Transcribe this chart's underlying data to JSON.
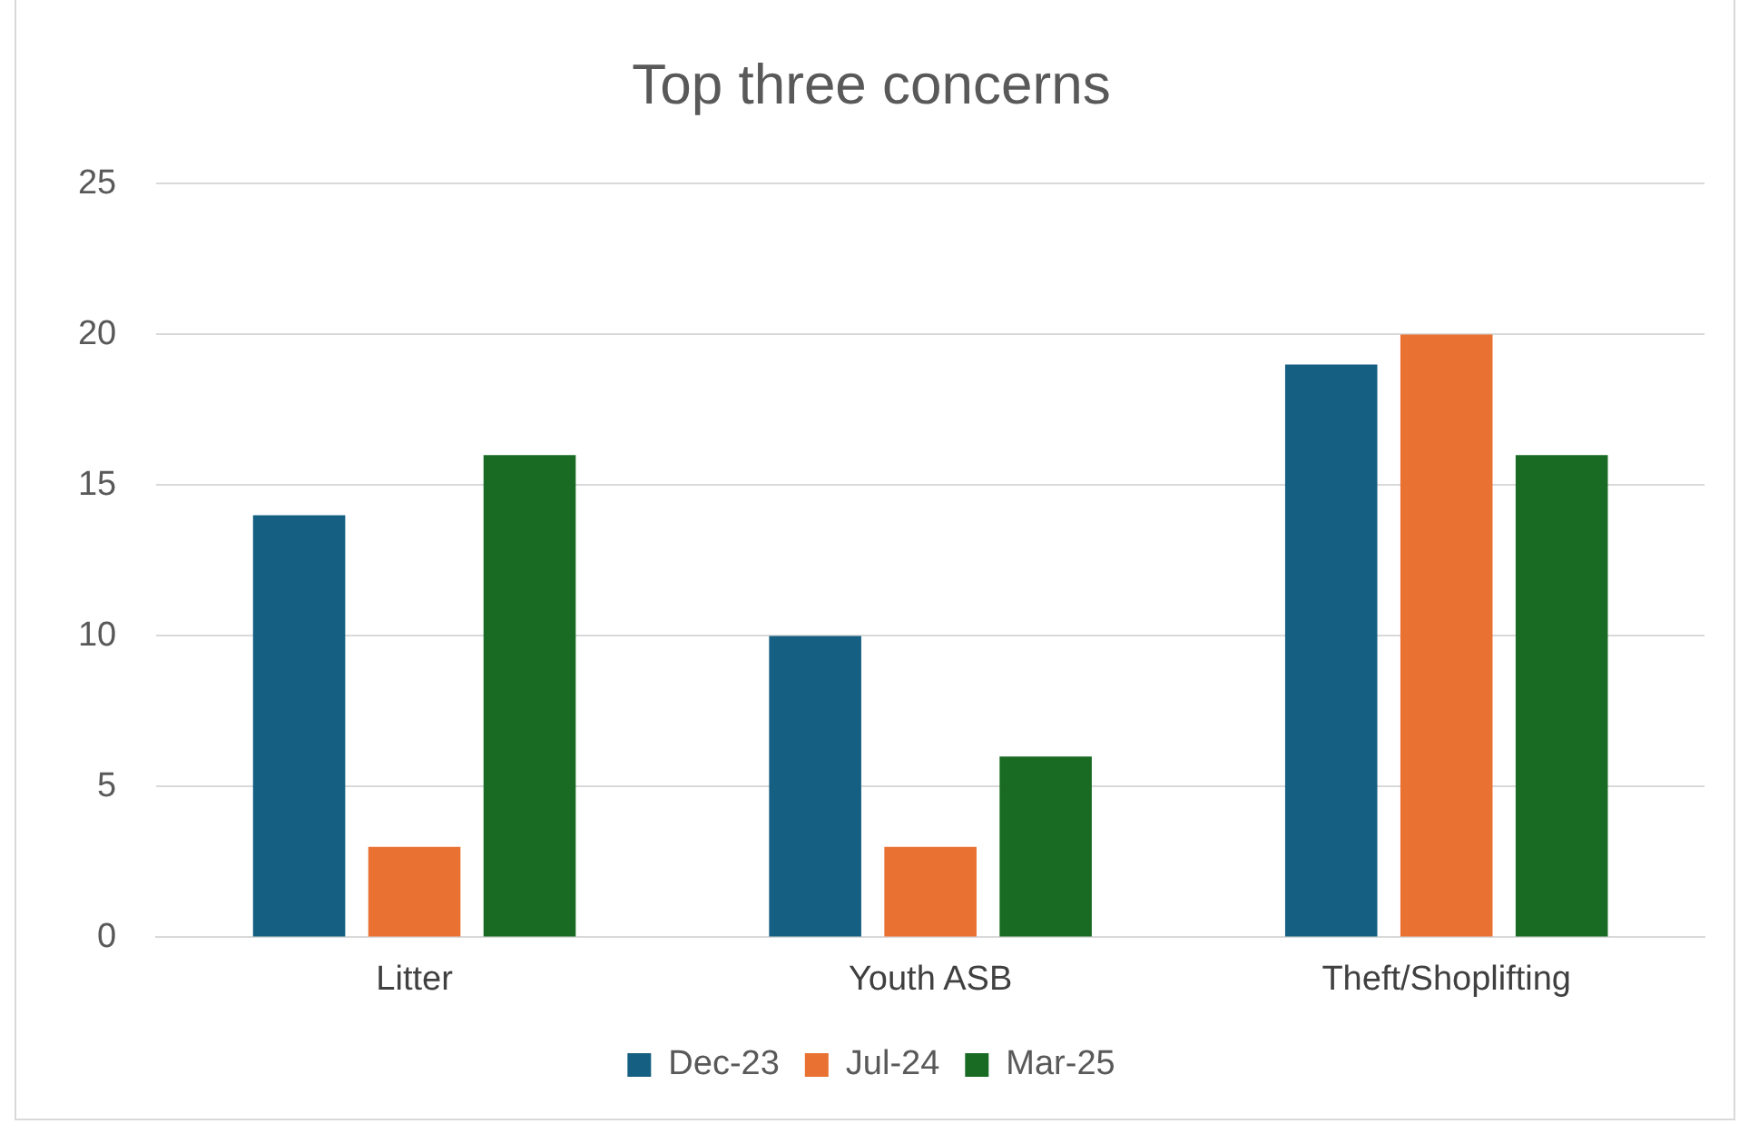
{
  "chart_data": {
    "type": "bar",
    "title": "Top three concerns",
    "categories": [
      "Litter",
      "Youth ASB",
      "Theft/Shoplifting"
    ],
    "series": [
      {
        "name": "Dec-23",
        "color": "#156082",
        "values": [
          14,
          10,
          19
        ]
      },
      {
        "name": "Jul-24",
        "color": "#e97132",
        "values": [
          3,
          3,
          20
        ]
      },
      {
        "name": "Mar-25",
        "color": "#196b24",
        "values": [
          16,
          6,
          16
        ]
      }
    ],
    "ylim": [
      0,
      25
    ],
    "yticks": [
      0,
      5,
      10,
      15,
      20,
      25
    ],
    "grid": "y",
    "legend": "bottom"
  }
}
